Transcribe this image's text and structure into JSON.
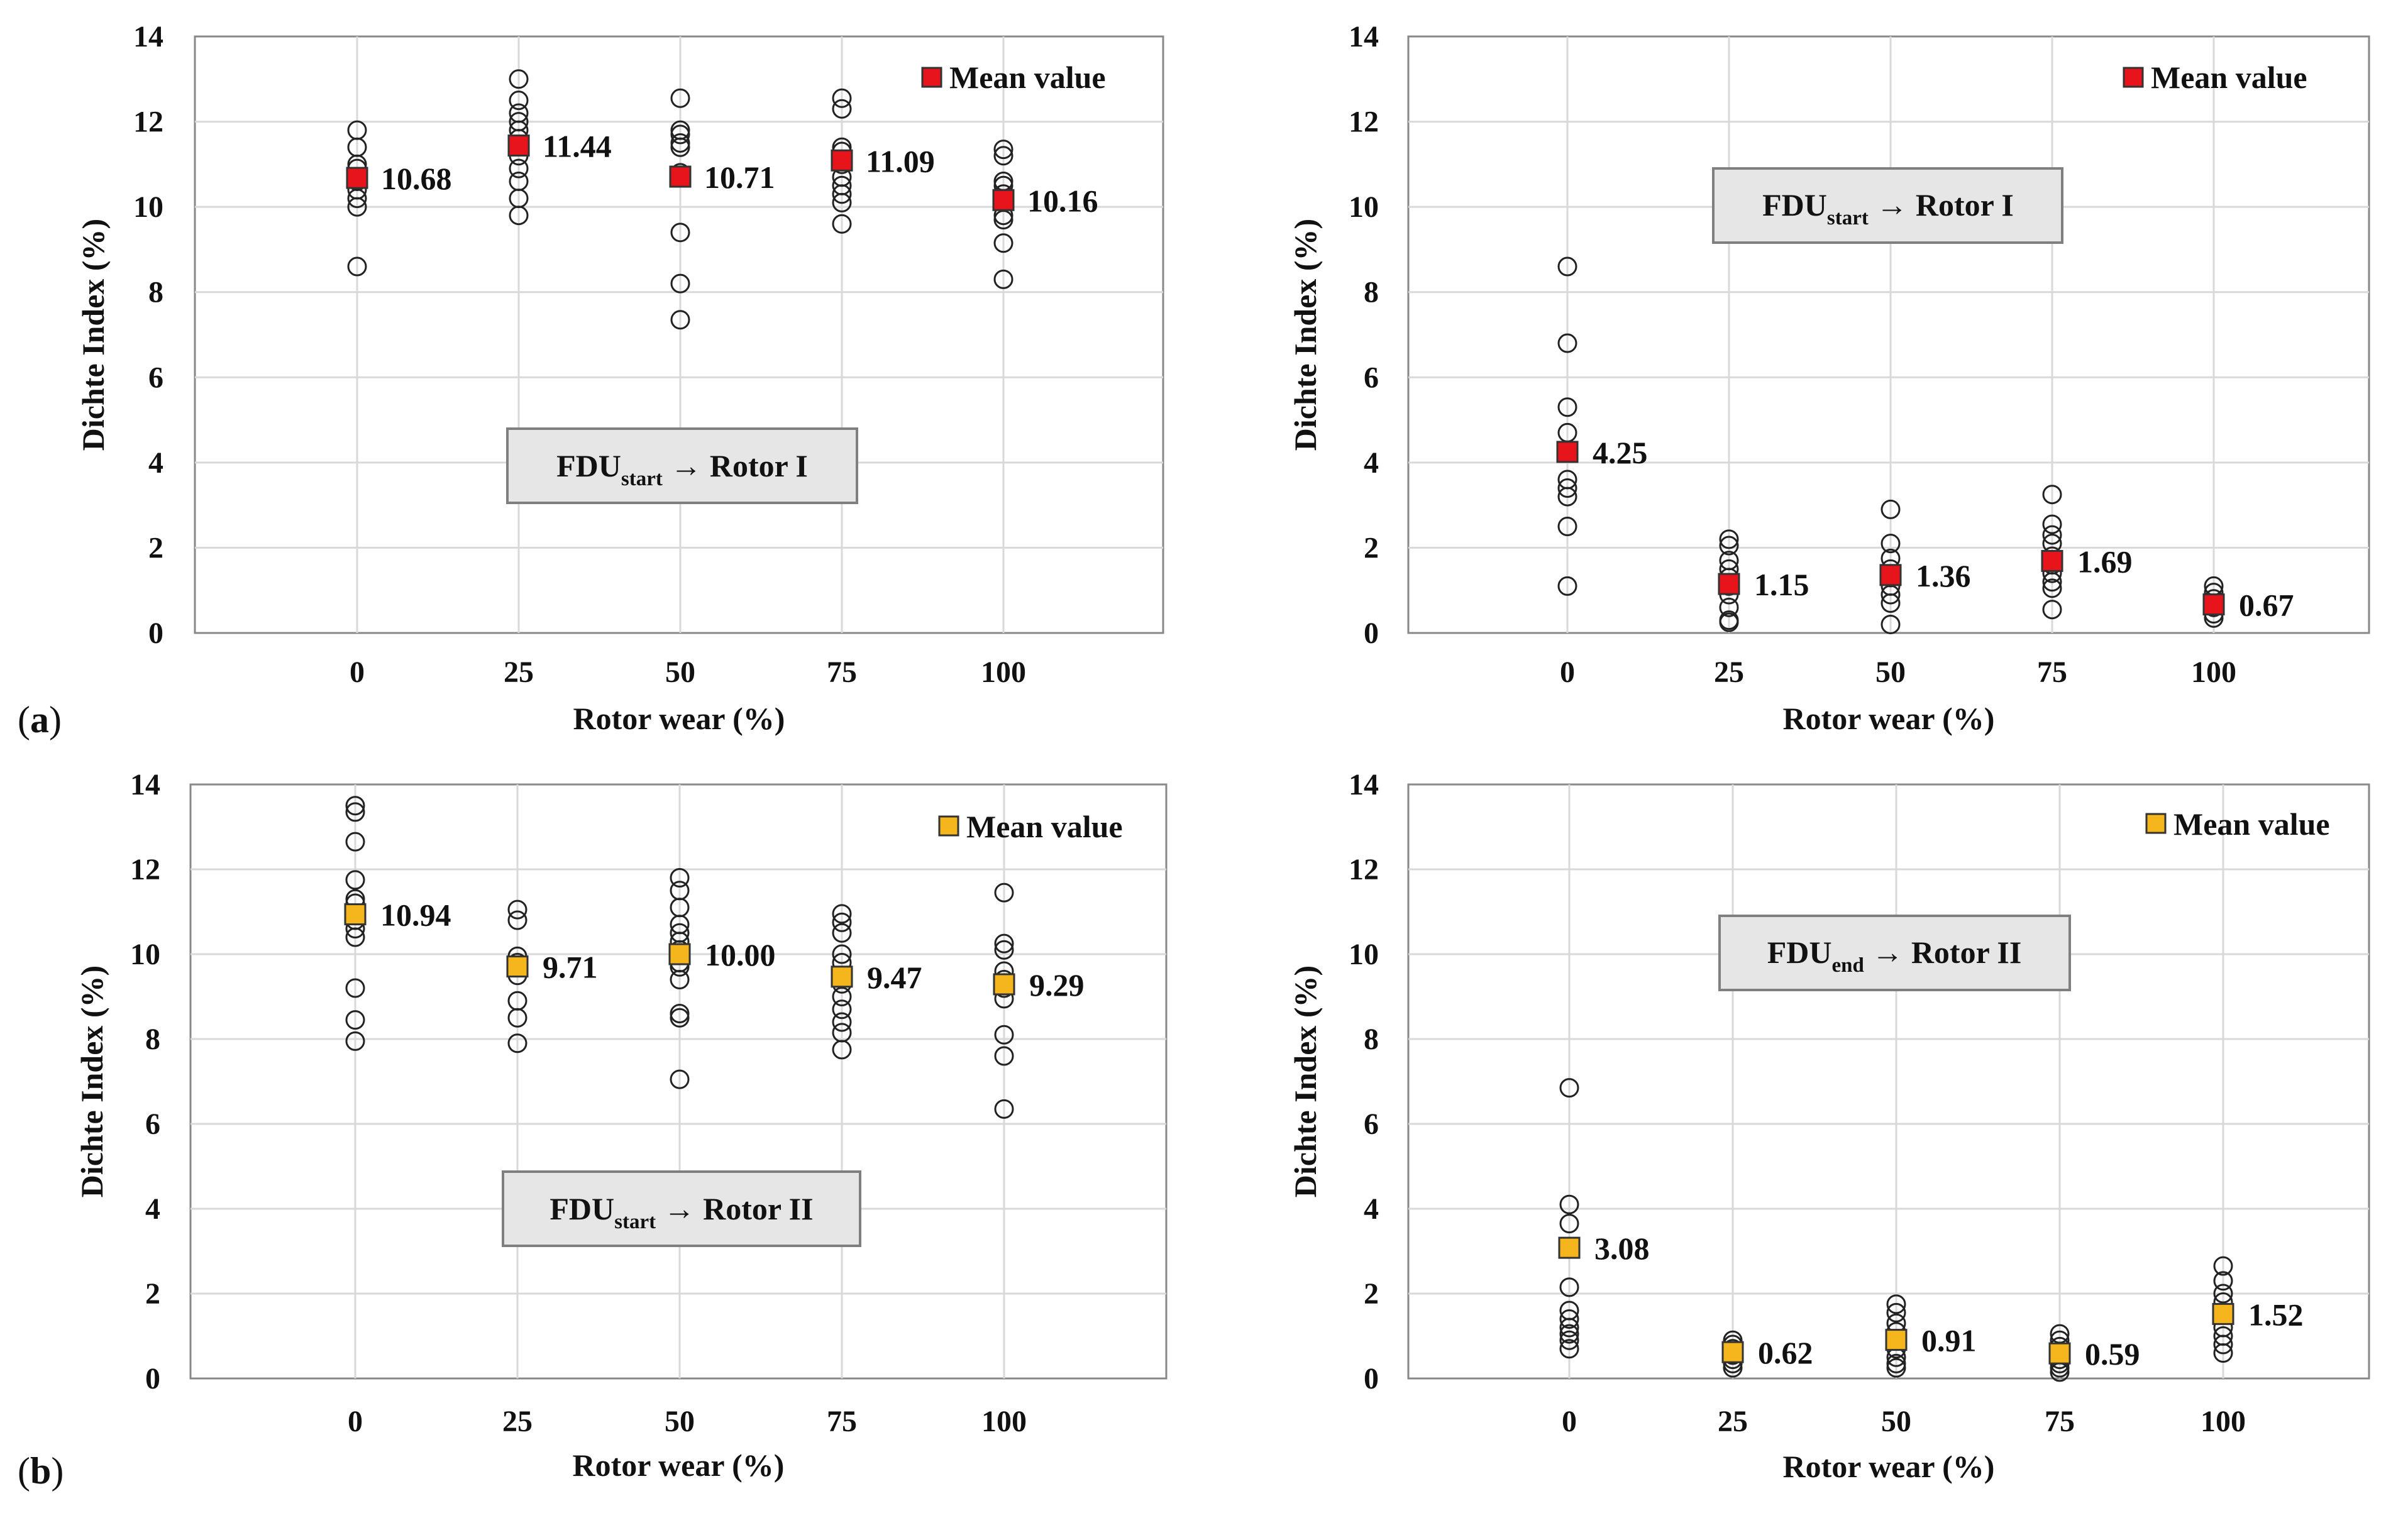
{
  "figure": {
    "panel_labels": [
      {
        "open": "(",
        "letter": "a",
        "close": ")"
      },
      {
        "open": "(",
        "letter": "b",
        "close": ")"
      }
    ]
  },
  "colors": {
    "red_mean": "#e8141b",
    "orange_mean": "#f5b51c",
    "grid": "#d9d9d9",
    "axis": "#888888",
    "text": "#111111",
    "box_fill": "#e6e6e6",
    "box_stroke": "#7f7f7f"
  },
  "chart_data": [
    {
      "type": "scatter",
      "panel": "a-left",
      "xlabel": "Rotor wear (%)",
      "ylabel": "Dichte Index (%)",
      "categories": [
        "0",
        "25",
        "50",
        "75",
        "100"
      ],
      "ylim": [
        0,
        14
      ],
      "yticks": [
        "0",
        "2",
        "4",
        "6",
        "8",
        "10",
        "12",
        "14"
      ],
      "grid": true,
      "legend": {
        "label": "Mean value",
        "color": "#e8141b",
        "placement": "top-right"
      },
      "annotation": {
        "main": "FDU",
        "sub": "start",
        "rest": " → Rotor I",
        "placement": "lower-center"
      },
      "means": [
        10.68,
        11.44,
        10.71,
        11.09,
        10.16
      ],
      "mean_labels": [
        "10.68",
        "11.44",
        "10.71",
        "11.09",
        "10.16"
      ],
      "points": [
        [
          11.8,
          11.4,
          11.0,
          10.9,
          10.6,
          10.4,
          10.2,
          10.0,
          8.6
        ],
        [
          13.0,
          12.5,
          12.2,
          12.0,
          11.8,
          11.6,
          11.2,
          10.9,
          10.6,
          10.2,
          9.8
        ],
        [
          12.55,
          11.8,
          11.7,
          11.5,
          11.4,
          10.8,
          9.4,
          8.2,
          7.35
        ],
        [
          12.55,
          12.3,
          11.4,
          11.3,
          11.0,
          10.7,
          10.5,
          10.3,
          10.1,
          9.6
        ],
        [
          11.35,
          11.2,
          10.6,
          10.5,
          10.3,
          9.8,
          9.7,
          9.15,
          8.3
        ]
      ]
    },
    {
      "type": "scatter",
      "panel": "a-right",
      "xlabel": "Rotor wear (%)",
      "ylabel": "Dichte Index (%)",
      "categories": [
        "0",
        "25",
        "50",
        "75",
        "100"
      ],
      "ylim": [
        0,
        14
      ],
      "yticks": [
        "0",
        "2",
        "4",
        "6",
        "8",
        "10",
        "12",
        "14"
      ],
      "grid": true,
      "legend": {
        "label": "Mean value",
        "color": "#e8141b",
        "placement": "top-right"
      },
      "annotation": {
        "main": "FDU",
        "sub": "start",
        "rest": " → Rotor I",
        "placement": "upper-center"
      },
      "means": [
        4.25,
        1.15,
        1.36,
        1.69,
        0.67
      ],
      "mean_labels": [
        "4.25",
        "1.15",
        "1.36",
        "1.69",
        "0.67"
      ],
      "points": [
        [
          8.6,
          6.8,
          5.3,
          4.7,
          3.6,
          3.4,
          3.2,
          2.5,
          1.1
        ],
        [
          2.2,
          2.05,
          1.7,
          1.5,
          1.3,
          1.1,
          0.9,
          0.6,
          0.3,
          0.25
        ],
        [
          2.9,
          2.1,
          1.75,
          1.5,
          1.3,
          1.1,
          0.9,
          0.7,
          0.2
        ],
        [
          3.25,
          2.55,
          2.3,
          2.1,
          1.8,
          1.6,
          1.4,
          1.2,
          1.05,
          0.55
        ],
        [
          1.1,
          0.95,
          0.8,
          0.6,
          0.45,
          0.35
        ]
      ]
    },
    {
      "type": "scatter",
      "panel": "b-left",
      "xlabel": "Rotor wear (%)",
      "ylabel": "Dichte Index (%)",
      "categories": [
        "0",
        "25",
        "50",
        "75",
        "100"
      ],
      "ylim": [
        0,
        14
      ],
      "yticks": [
        "0",
        "2",
        "4",
        "6",
        "8",
        "10",
        "12",
        "14"
      ],
      "grid": true,
      "legend": {
        "label": "Mean value",
        "color": "#f5b51c",
        "placement": "top-right"
      },
      "annotation": {
        "main": "FDU",
        "sub": "start",
        "rest": " → Rotor II",
        "placement": "lower-center"
      },
      "means": [
        10.94,
        9.71,
        10.0,
        9.47,
        9.29
      ],
      "mean_labels": [
        "10.94",
        "9.71",
        "10.00",
        "9.47",
        "9.29"
      ],
      "points": [
        [
          13.5,
          13.35,
          12.65,
          11.75,
          11.3,
          11.2,
          10.8,
          10.6,
          10.4,
          9.2,
          8.45,
          7.95
        ],
        [
          11.05,
          10.8,
          9.95,
          9.8,
          9.5,
          8.9,
          8.5,
          7.9
        ],
        [
          11.8,
          11.5,
          11.1,
          10.7,
          10.5,
          10.3,
          10.1,
          9.8,
          9.7,
          9.4,
          8.6,
          8.5,
          7.05
        ],
        [
          10.95,
          10.75,
          10.5,
          10.0,
          9.8,
          9.3,
          9.0,
          8.7,
          8.4,
          8.15,
          7.75
        ],
        [
          11.45,
          10.25,
          10.1,
          9.6,
          9.4,
          9.2,
          8.95,
          8.1,
          7.6,
          6.35
        ]
      ]
    },
    {
      "type": "scatter",
      "panel": "b-right",
      "xlabel": "Rotor wear (%)",
      "ylabel": "Dichte Index (%)",
      "categories": [
        "0",
        "25",
        "50",
        "75",
        "100"
      ],
      "ylim": [
        0,
        14
      ],
      "yticks": [
        "0",
        "2",
        "4",
        "6",
        "8",
        "10",
        "12",
        "14"
      ],
      "grid": true,
      "legend": {
        "label": "Mean value",
        "color": "#f5b51c",
        "placement": "top-right"
      },
      "annotation": {
        "main": "FDU",
        "sub": "end",
        "rest": " → Rotor II",
        "placement": "upper-center"
      },
      "means": [
        3.08,
        0.62,
        0.91,
        0.59,
        1.52
      ],
      "mean_labels": [
        "3.08",
        "0.62",
        "0.91",
        "0.59",
        "1.52"
      ],
      "points": [
        [
          6.85,
          4.1,
          3.65,
          2.15,
          1.6,
          1.4,
          1.2,
          1.05,
          0.9,
          0.7
        ],
        [
          0.9,
          0.8,
          0.7,
          0.55,
          0.45,
          0.35,
          0.25
        ],
        [
          1.75,
          1.55,
          1.3,
          1.1,
          0.9,
          0.7,
          0.5,
          0.35,
          0.25
        ],
        [
          1.05,
          0.9,
          0.75,
          0.6,
          0.45,
          0.35,
          0.25,
          0.15
        ],
        [
          2.65,
          2.3,
          2.0,
          1.8,
          1.2,
          1.0,
          0.8,
          0.6
        ]
      ]
    }
  ]
}
